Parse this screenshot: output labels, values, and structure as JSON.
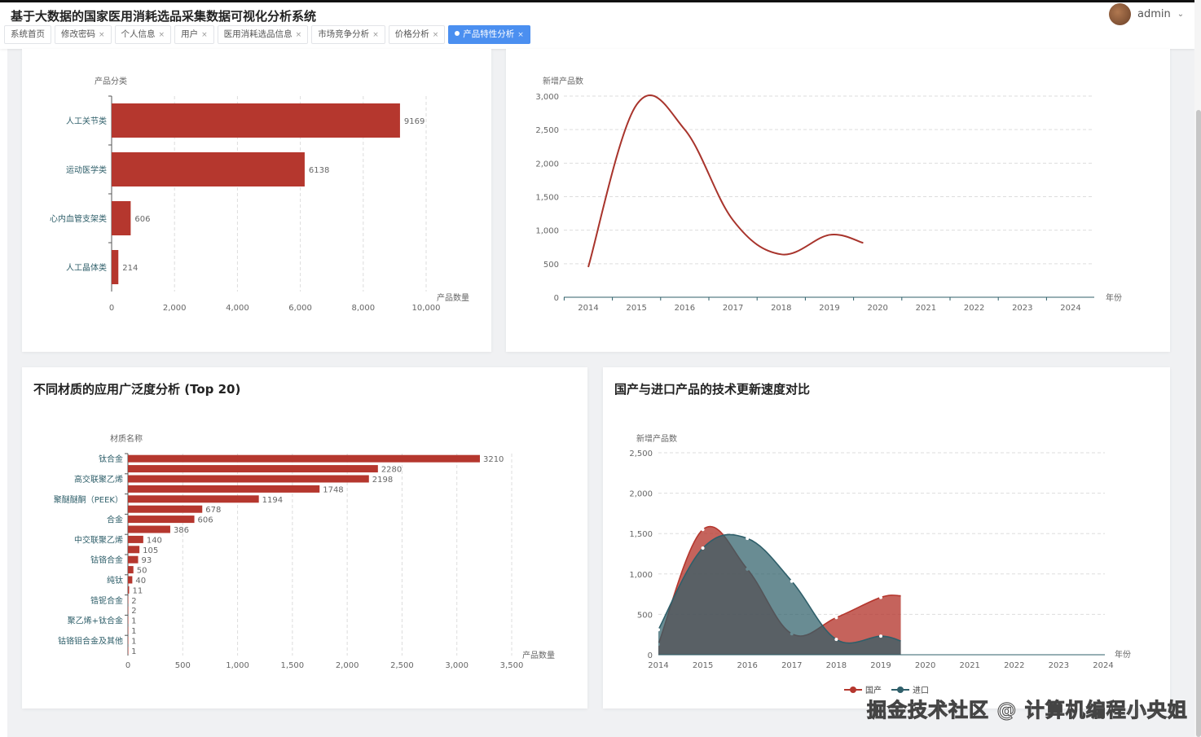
{
  "header": {
    "title": "基于大数据的国家医用消耗选品采集数据可视化分析系统",
    "user": "admin"
  },
  "tabs": [
    {
      "label": "系统首页",
      "closable": false
    },
    {
      "label": "修改密码",
      "closable": true
    },
    {
      "label": "个人信息",
      "closable": true
    },
    {
      "label": "用户",
      "closable": true
    },
    {
      "label": "医用消耗选品信息",
      "closable": true
    },
    {
      "label": "市场竞争分析",
      "closable": true
    },
    {
      "label": "价格分析",
      "closable": true
    },
    {
      "label": "产品特性分析",
      "closable": true,
      "active": true
    }
  ],
  "close_glyph": "×",
  "colors": {
    "red": "#b5372e",
    "teal": "#2f5f6a",
    "active_tab": "#4b8ff0"
  },
  "watermark": "掘金技术社区 @ 计算机编程小央姐",
  "chart_data": [
    {
      "type": "bar",
      "orientation": "horizontal",
      "title": "",
      "ylabel": "产品分类",
      "xlabel": "产品数量",
      "categories": [
        "人工关节类",
        "运动医学类",
        "心内血管支架类",
        "人工晶体类"
      ],
      "values": [
        9169,
        6138,
        606,
        214
      ],
      "xlim": [
        0,
        10000
      ],
      "xticks": [
        "0",
        "2,000",
        "4,000",
        "6,000",
        "8,000",
        "10,000"
      ],
      "grid": true
    },
    {
      "type": "line",
      "title": "",
      "ylabel": "新增产品数",
      "xlabel": "年份",
      "smooth": true,
      "x": [
        2014,
        2015,
        2016,
        2017,
        2018,
        2019,
        2019.7
      ],
      "values": [
        450,
        2870,
        2500,
        1150,
        640,
        930,
        810
      ],
      "ylim": [
        0,
        3000
      ],
      "yticks": [
        "0",
        "500",
        "1,000",
        "1,500",
        "2,000",
        "2,500",
        "3,000"
      ],
      "xticks": [
        "2014",
        "2015",
        "2016",
        "2017",
        "2018",
        "2019",
        "2020",
        "2021",
        "2022",
        "2023",
        "2024"
      ],
      "grid": true
    },
    {
      "type": "bar",
      "orientation": "horizontal",
      "title": "不同材质的应用广泛度分析 (Top 20)",
      "ylabel": "材质名称",
      "xlabel": "产品数量",
      "categories": [
        "钛合金",
        "",
        "高交联聚乙烯",
        "",
        "聚醚醚酮（PEEK）",
        "",
        "合金",
        "",
        "中交联聚乙烯",
        "",
        "钴铬合金",
        "",
        "纯钛",
        "",
        "锆铌合金",
        "",
        "聚乙烯+钛合金",
        "",
        "钴铬钼合金及其他",
        ""
      ],
      "values": [
        3210,
        2280,
        2198,
        1748,
        1194,
        678,
        606,
        386,
        140,
        105,
        93,
        50,
        40,
        11,
        2,
        2,
        1,
        1,
        1,
        1
      ],
      "xlim": [
        0,
        3500
      ],
      "xticks": [
        "0",
        "500",
        "1,000",
        "1,500",
        "2,000",
        "2,500",
        "3,000",
        "3,500"
      ],
      "grid": true
    },
    {
      "type": "area",
      "title": "国产与进口产品的技术更新速度对比",
      "ylabel": "新增产品数",
      "xlabel": "年份",
      "smooth": true,
      "x": [
        2014,
        2015,
        2016,
        2017,
        2018,
        2019,
        2019.45
      ],
      "series": [
        {
          "name": "国产",
          "values": [
            130,
            1550,
            1060,
            260,
            460,
            710,
            730
          ]
        },
        {
          "name": "进口",
          "values": [
            310,
            1320,
            1440,
            910,
            190,
            230,
            170
          ]
        }
      ],
      "ylim": [
        0,
        2500
      ],
      "yticks": [
        "0",
        "500",
        "1,000",
        "1,500",
        "2,000",
        "2,500"
      ],
      "xticks": [
        "2014",
        "2015",
        "2016",
        "2017",
        "2018",
        "2019",
        "2020",
        "2021",
        "2022",
        "2023",
        "2024"
      ],
      "legend": "bottom",
      "grid": true
    }
  ]
}
